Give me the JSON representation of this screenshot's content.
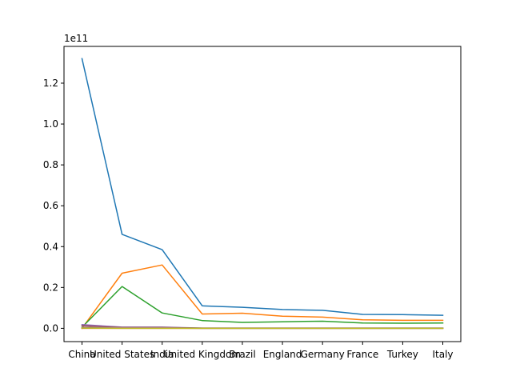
{
  "chart_data": {
    "type": "line",
    "categories": [
      "China",
      "United States",
      "India",
      "United Kingdom",
      "Brazil",
      "England",
      "Germany",
      "France",
      "Turkey",
      "Italy"
    ],
    "offset_label": "1e11",
    "yticks": [
      "0.0",
      "0.2",
      "0.4",
      "0.6",
      "0.8",
      "1.0",
      "1.2"
    ],
    "ylim": [
      -0.065,
      1.38
    ],
    "grid": false,
    "legend": "none",
    "series": [
      {
        "color": "#1f77b4",
        "values": [
          1.32,
          0.46,
          0.385,
          0.11,
          0.103,
          0.092,
          0.088,
          0.068,
          0.067,
          0.064
        ]
      },
      {
        "color": "#ff7f0e",
        "values": [
          0.0,
          0.27,
          0.31,
          0.07,
          0.074,
          0.059,
          0.055,
          0.042,
          0.039,
          0.039
        ]
      },
      {
        "color": "#2ca02c",
        "values": [
          0.005,
          0.205,
          0.075,
          0.038,
          0.029,
          0.032,
          0.035,
          0.026,
          0.025,
          0.026
        ]
      },
      {
        "color": "#d62728",
        "values": [
          0.0,
          0.0,
          0.0,
          0.0,
          0.0,
          0.0,
          0.0,
          0.0,
          0.0,
          0.0
        ]
      },
      {
        "color": "#9467bd",
        "values": [
          0.018,
          0.006,
          0.006,
          0.001,
          0.001,
          0.001,
          0.001,
          0.001,
          0.001,
          0.001
        ]
      },
      {
        "color": "#8c564b",
        "values": [
          0.012,
          0.004,
          0.004,
          0.001,
          0.001,
          0.001,
          0.001,
          0.001,
          0.001,
          0.001
        ]
      },
      {
        "color": "#e377c2",
        "values": [
          0.005,
          0.002,
          0.002,
          0.0,
          0.0,
          0.0,
          0.0,
          0.0,
          0.0,
          0.0
        ]
      },
      {
        "color": "#7f7f7f",
        "values": [
          0.003,
          0.001,
          0.001,
          0.0,
          0.0,
          0.0,
          0.0,
          0.0,
          0.0,
          0.0
        ]
      },
      {
        "color": "#bcbd22",
        "values": [
          0.001,
          0.0,
          0.0,
          0.0,
          0.0,
          0.0,
          0.0,
          0.0,
          0.0,
          0.0
        ]
      }
    ]
  }
}
